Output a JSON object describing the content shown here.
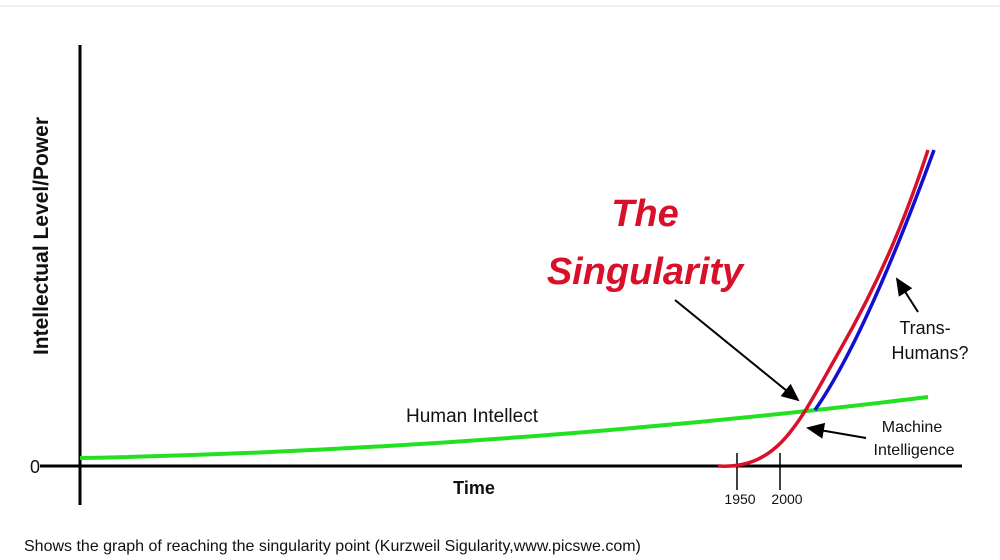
{
  "figure": {
    "y_axis_label": "Intellectual Level/Power",
    "x_axis_label": "Time",
    "origin_label": "0",
    "x_ticks": [
      "1950",
      "2000"
    ],
    "title_lines": [
      "The",
      "Singularity"
    ],
    "human_label": "Human Intellect",
    "transhuman_lines": [
      "Trans-",
      "Humans?"
    ],
    "machine_lines": [
      "Machine",
      "Intelligence"
    ]
  },
  "caption": "Shows the graph of reaching the singularity point (Kurzweil Sigularity,www.picswe.com)"
}
